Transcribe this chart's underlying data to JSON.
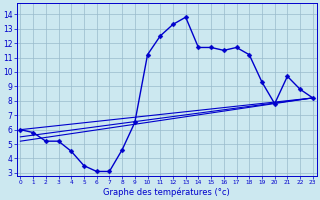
{
  "hours": [
    0,
    1,
    2,
    3,
    4,
    5,
    6,
    7,
    8,
    9,
    10,
    11,
    12,
    13,
    14,
    15,
    16,
    17,
    18,
    19,
    20,
    21,
    22,
    23
  ],
  "temp_main": [
    6.0,
    5.8,
    5.2,
    5.2,
    4.5,
    3.5,
    3.1,
    3.1,
    4.6,
    6.5,
    11.2,
    12.5,
    13.3,
    13.8,
    11.7,
    11.7,
    11.5,
    11.7,
    11.2,
    9.3,
    7.8,
    9.7,
    8.8,
    8.2
  ],
  "trend_line1_x": [
    0,
    23
  ],
  "trend_line1_y": [
    6.0,
    8.2
  ],
  "trend_line2_x": [
    0,
    23
  ],
  "trend_line2_y": [
    5.5,
    8.2
  ],
  "trend_line3_x": [
    0,
    23
  ],
  "trend_line3_y": [
    5.2,
    8.2
  ],
  "line_color": "#0000cc",
  "bg_color": "#cce8f0",
  "grid_color": "#99bbcc",
  "xlabel": "Graphe des températures (°c)",
  "ylabel_ticks": [
    3,
    4,
    5,
    6,
    7,
    8,
    9,
    10,
    11,
    12,
    13,
    14
  ],
  "xlim": [
    -0.3,
    23.3
  ],
  "ylim": [
    2.8,
    14.8
  ],
  "markersize": 2.5
}
